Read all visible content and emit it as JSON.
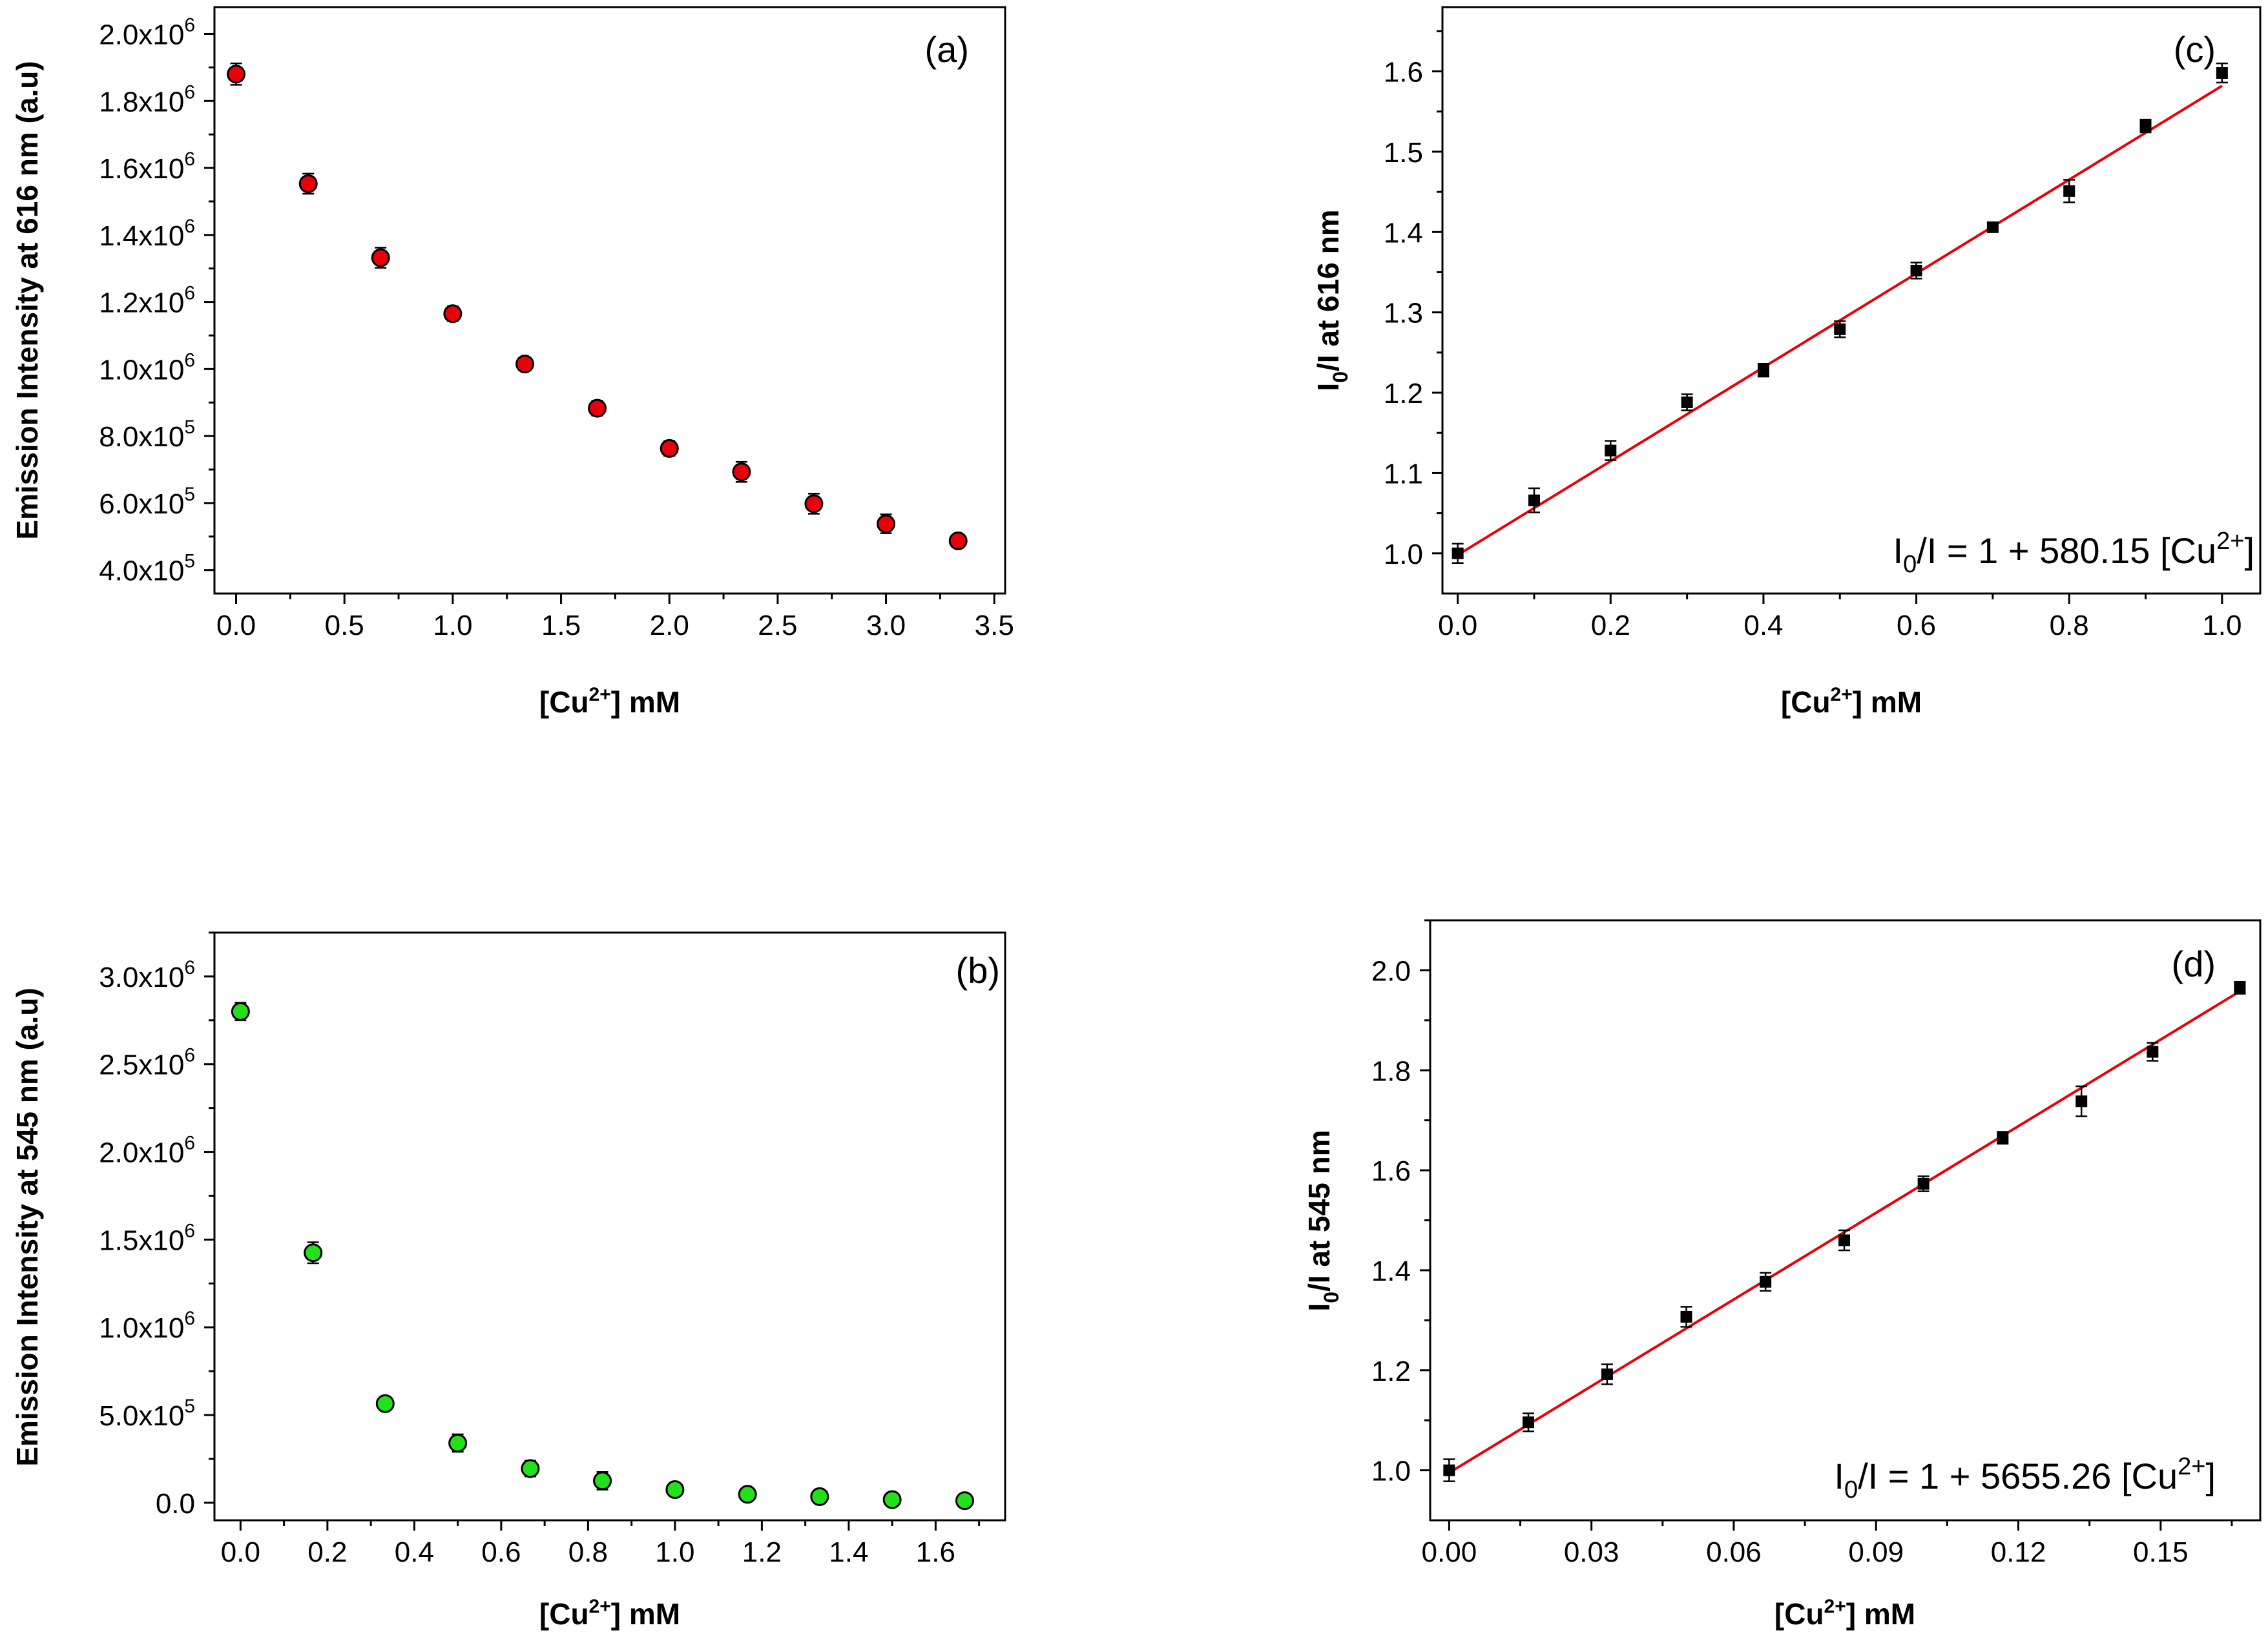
{
  "chart_data": [
    {
      "id": "a",
      "type": "scatter",
      "panel_label": "(a)",
      "xlabel": "[Cu2+] mM",
      "ylabel": "Emission Intensity at 616 nm (a.u)",
      "xlim": [
        -0.1,
        3.55
      ],
      "ylim": [
        330000,
        2080000
      ],
      "x_ticks": [
        0.0,
        0.5,
        1.0,
        1.5,
        2.0,
        2.5,
        3.0,
        3.5
      ],
      "x_tick_labels": [
        "0.0",
        "0.5",
        "1.0",
        "1.5",
        "2.0",
        "2.5",
        "3.0",
        "3.5"
      ],
      "y_ticks": [
        400000,
        600000,
        800000,
        1000000,
        1200000,
        1400000,
        1600000,
        1800000,
        2000000
      ],
      "y_tick_labels": [
        {
          "mantissa": "4.0x10",
          "exp": "5"
        },
        {
          "mantissa": "6.0x10",
          "exp": "5"
        },
        {
          "mantissa": "8.0x10",
          "exp": "5"
        },
        {
          "mantissa": "1.0x10",
          "exp": "6"
        },
        {
          "mantissa": "1.2x10",
          "exp": "6"
        },
        {
          "mantissa": "1.4x10",
          "exp": "6"
        },
        {
          "mantissa": "1.6x10",
          "exp": "6"
        },
        {
          "mantissa": "1.8x10",
          "exp": "6"
        },
        {
          "mantissa": "2.0x10",
          "exp": "6"
        }
      ],
      "marker": "circle",
      "marker_color": "#e8000b",
      "x": [
        0.0,
        0.333,
        0.667,
        1.0,
        1.333,
        1.667,
        2.0,
        2.333,
        2.667,
        3.0,
        3.333
      ],
      "y": [
        1880000,
        1553000,
        1332000,
        1165000,
        1015000,
        883000,
        763000,
        693000,
        598000,
        538000,
        487000
      ],
      "err": [
        32000,
        30000,
        30000,
        22000,
        15000,
        22000,
        22000,
        30000,
        30000,
        28000,
        12000
      ]
    },
    {
      "id": "b",
      "type": "scatter",
      "panel_label": "(b)",
      "xlabel": "[Cu2+] mM",
      "ylabel": "Emission Intensity at 545 nm (a.u)",
      "xlim": [
        -0.06,
        1.76
      ],
      "ylim": [
        -100000,
        3250000
      ],
      "x_ticks": [
        0.0,
        0.2,
        0.4,
        0.6,
        0.8,
        1.0,
        1.2,
        1.4,
        1.6
      ],
      "x_tick_labels": [
        "0.0",
        "0.2",
        "0.4",
        "0.6",
        "0.8",
        "1.0",
        "1.2",
        "1.4",
        "1.6"
      ],
      "y_ticks": [
        0,
        500000,
        1000000,
        1500000,
        2000000,
        2500000,
        3000000
      ],
      "y_tick_labels": [
        {
          "mantissa": "0.0",
          "exp": ""
        },
        {
          "mantissa": "5.0x10",
          "exp": "5"
        },
        {
          "mantissa": "1.0x10",
          "exp": "6"
        },
        {
          "mantissa": "1.5x10",
          "exp": "6"
        },
        {
          "mantissa": "2.0x10",
          "exp": "6"
        },
        {
          "mantissa": "2.5x10",
          "exp": "6"
        },
        {
          "mantissa": "3.0x10",
          "exp": "6"
        }
      ],
      "marker": "circle",
      "marker_color": "#22e01a",
      "x": [
        0.0,
        0.167,
        0.333,
        0.5,
        0.667,
        0.833,
        1.0,
        1.167,
        1.333,
        1.5,
        1.667
      ],
      "y": [
        2800000,
        1425000,
        565000,
        340000,
        195000,
        125000,
        75000,
        48000,
        35000,
        18000,
        12000
      ],
      "err": [
        50000,
        60000,
        35000,
        50000,
        45000,
        50000,
        30000,
        25000,
        25000,
        15000,
        15000
      ]
    },
    {
      "id": "c",
      "type": "scatter",
      "panel_label": "(c)",
      "xlabel": "[Cu2+] mM",
      "ylabel": "I0/I at 616 nm",
      "xlim": [
        -0.02,
        1.05
      ],
      "ylim": [
        0.95,
        1.68
      ],
      "x_ticks": [
        0.0,
        0.2,
        0.4,
        0.6,
        0.8,
        1.0
      ],
      "x_tick_labels": [
        "0.0",
        "0.2",
        "0.4",
        "0.6",
        "0.8",
        "1.0"
      ],
      "y_ticks": [
        1.0,
        1.1,
        1.2,
        1.3,
        1.4,
        1.5,
        1.6
      ],
      "y_tick_labels": [
        "1.0",
        "1.1",
        "1.2",
        "1.3",
        "1.4",
        "1.5",
        "1.6"
      ],
      "marker": "square",
      "marker_color": "#000000",
      "x": [
        0.0,
        0.1,
        0.2,
        0.3,
        0.4,
        0.5,
        0.6,
        0.7,
        0.8,
        0.9,
        1.0
      ],
      "y": [
        1.0,
        1.066,
        1.128,
        1.188,
        1.228,
        1.279,
        1.352,
        1.406,
        1.451,
        1.532,
        1.598
      ],
      "err": [
        0.012,
        0.015,
        0.012,
        0.01,
        0.008,
        0.01,
        0.01,
        0.005,
        0.014,
        0.008,
        0.012
      ],
      "fit": {
        "x": [
          0.0,
          1.0
        ],
        "y": [
          0.998,
          1.582
        ],
        "color": "#e8000b"
      },
      "equation": {
        "text_prefix": "I",
        "sub": "0",
        "text_mid": "/I = 1 + 580.15 [Cu",
        "sup": "2+",
        "text_suffix": "]"
      }
    },
    {
      "id": "d",
      "type": "scatter",
      "panel_label": "(d)",
      "xlabel": "[Cu2+] mM",
      "ylabel": "I0/I at 545 nm",
      "xlim": [
        -0.004,
        0.171
      ],
      "ylim": [
        0.9,
        2.1
      ],
      "x_ticks": [
        0.0,
        0.03,
        0.06,
        0.09,
        0.12,
        0.15
      ],
      "x_tick_labels": [
        "0.00",
        "0.03",
        "0.06",
        "0.09",
        "0.12",
        "0.15"
      ],
      "y_ticks": [
        1.0,
        1.2,
        1.4,
        1.6,
        1.8,
        2.0
      ],
      "y_tick_labels": [
        "1.0",
        "1.2",
        "1.4",
        "1.6",
        "1.8",
        "2.0"
      ],
      "marker": "square",
      "marker_color": "#000000",
      "x": [
        0.0,
        0.0167,
        0.0333,
        0.05,
        0.0667,
        0.0833,
        0.1,
        0.1167,
        0.1333,
        0.1483,
        0.1667
      ],
      "y": [
        1.0,
        1.096,
        1.192,
        1.307,
        1.377,
        1.46,
        1.573,
        1.665,
        1.738,
        1.837,
        1.965
      ],
      "err": [
        0.022,
        0.018,
        0.02,
        0.02,
        0.018,
        0.02,
        0.015,
        0.012,
        0.03,
        0.018,
        0.012
      ],
      "fit": {
        "x": [
          0.0,
          0.1667
        ],
        "y": [
          0.995,
          1.958
        ],
        "color": "#e8000b"
      },
      "equation": {
        "text_prefix": "I",
        "sub": "0",
        "text_mid": "/I = 1 + 5655.26 [Cu",
        "sup": "2+",
        "text_suffix": "]"
      }
    }
  ],
  "axis_text": {
    "x_title_prefix": "[Cu",
    "x_title_sup": "2+",
    "x_title_suffix": "] mM",
    "y_ratio_prefix": "I",
    "y_ratio_sub": "0",
    "y_ratio_616": "/I at 616 nm",
    "y_ratio_545": "/I at 545 nm",
    "y_emission_616": "Emission Intensity at 616 nm (a.u)",
    "y_emission_545": "Emission Intensity at 545 nm (a.u)"
  }
}
